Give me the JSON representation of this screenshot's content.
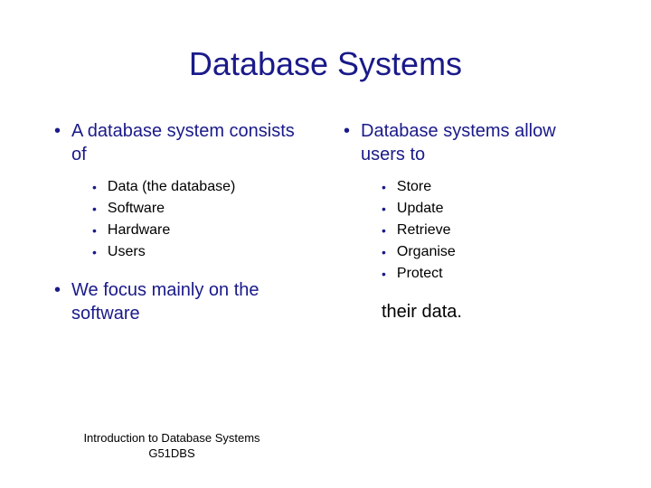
{
  "title": "Database Systems",
  "left": {
    "heading1": "A database system consists of",
    "items1": [
      "Data (the database)",
      "Software",
      "Hardware",
      "Users"
    ],
    "heading2": "We focus mainly on the software"
  },
  "right": {
    "heading1": "Database systems allow users to",
    "items1": [
      "Store",
      "Update",
      "Retrieve",
      "Organise",
      "Protect"
    ],
    "trailing": "their data."
  },
  "footer_line1": "Introduction to Database Systems",
  "footer_line2": "G51DBS",
  "colors": {
    "heading_color": "#1a1a8a",
    "body_color": "#000000",
    "background": "#ffffff"
  },
  "typography": {
    "title_fontsize": 36,
    "heading_fontsize": 20,
    "subitem_fontsize": 16,
    "footer_fontsize": 13,
    "font_family": "Verdana"
  }
}
